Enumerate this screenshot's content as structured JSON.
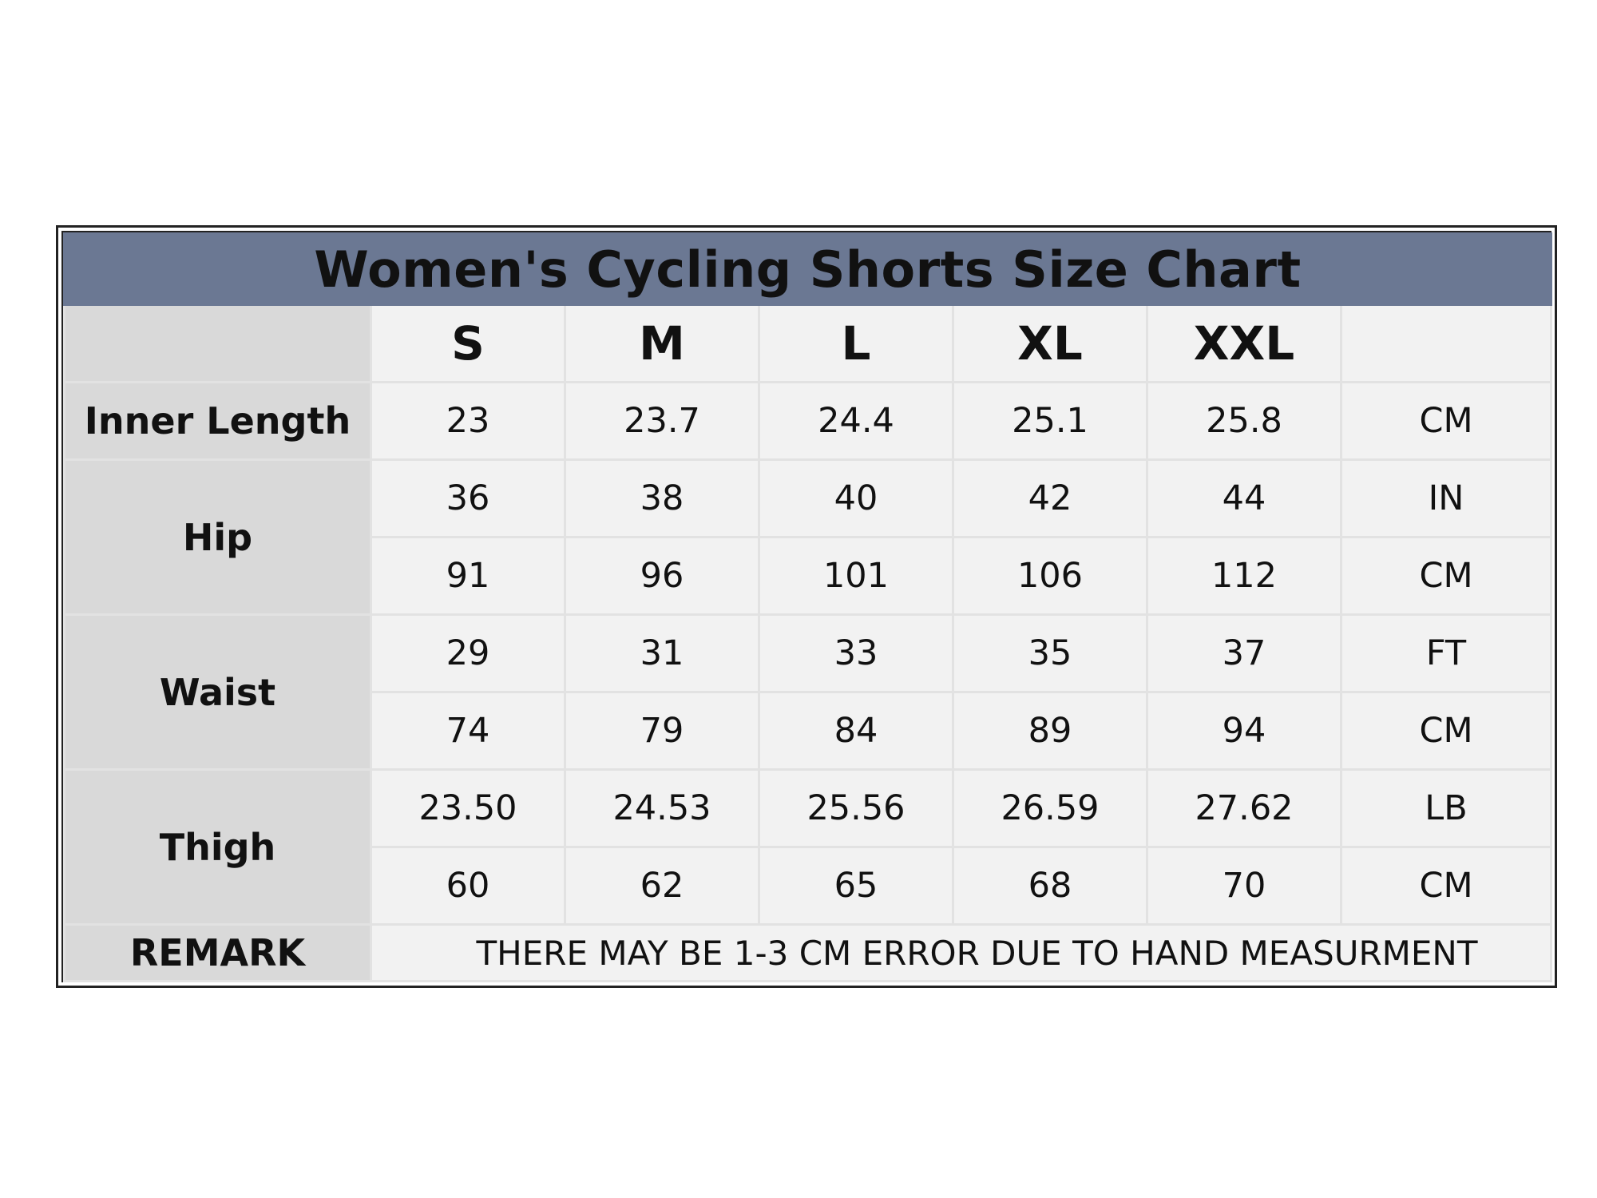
{
  "chart_data": {
    "type": "table",
    "title": "Women's Cycling Shorts Size Chart",
    "sizes": [
      "S",
      "M",
      "L",
      "XL",
      "XXL"
    ],
    "rows": [
      {
        "measure": "Inner Length",
        "values": [
          "23",
          "23.7",
          "24.4",
          "25.1",
          "25.8"
        ],
        "unit": "CM"
      },
      {
        "measure": "Hip",
        "values": [
          "36",
          "38",
          "40",
          "42",
          "44"
        ],
        "unit": "IN"
      },
      {
        "measure": "Hip",
        "values": [
          "91",
          "96",
          "101",
          "106",
          "112"
        ],
        "unit": "CM"
      },
      {
        "measure": "Waist",
        "values": [
          "29",
          "31",
          "33",
          "35",
          "37"
        ],
        "unit": "FT"
      },
      {
        "measure": "Waist",
        "values": [
          "74",
          "79",
          "84",
          "89",
          "94"
        ],
        "unit": "CM"
      },
      {
        "measure": "Thigh",
        "values": [
          "23.50",
          "24.53",
          "25.56",
          "26.59",
          "27.62"
        ],
        "unit": "LB"
      },
      {
        "measure": "Thigh",
        "values": [
          "60",
          "62",
          "65",
          "68",
          "70"
        ],
        "unit": "CM"
      }
    ],
    "remark": {
      "label": "REMARK",
      "text": "THERE MAY BE 1-3 CM ERROR DUE TO HAND MEASURMENT"
    }
  },
  "colors": {
    "title_bar": "#6b7893",
    "label_column": "#d9d9d9",
    "cell_background": "#f2f2f2",
    "grid_lines": "#e2e2e2",
    "frame": "#222222"
  }
}
